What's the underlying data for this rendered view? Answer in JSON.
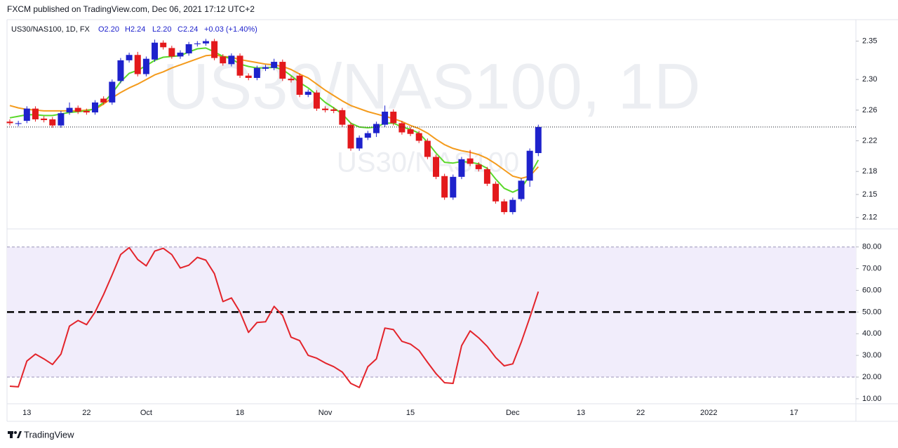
{
  "header": {
    "published": "FXCM published on TradingView.com, Dec 06, 2021 17:12 UTC+2",
    "symbol": "US30/NAS100, 1D, FX",
    "open": "O2.20",
    "high": "H2.24",
    "low": "L2.20",
    "close": "C2.24",
    "change": "+0.03 (+1.40%)"
  },
  "footer": {
    "brand": "TradingView"
  },
  "chart_data": [
    {
      "type": "candlestick",
      "watermark": "US30/NAS100, 1D",
      "watermark_small": "US30/NAS100",
      "up_color": "#1e22cc",
      "down_color": "#e3191c",
      "last_price_line": true,
      "categories": [
        null,
        null,
        "13",
        null,
        null,
        null,
        null,
        null,
        null,
        "22",
        null,
        null,
        null,
        null,
        null,
        null,
        "Oct",
        null,
        null,
        null,
        null,
        null,
        null,
        null,
        null,
        null,
        null,
        "18",
        null,
        null,
        null,
        null,
        null,
        null,
        null,
        null,
        null,
        "Nov",
        null,
        null,
        null,
        null,
        null,
        null,
        null,
        null,
        null,
        "15",
        null,
        null,
        null,
        null,
        null,
        null,
        null,
        null,
        null,
        null,
        null,
        "Dec",
        null,
        null,
        null,
        null,
        null,
        null,
        null,
        "13",
        null,
        null,
        null,
        null,
        null,
        null,
        "22",
        null,
        null,
        null,
        null,
        null,
        null,
        null,
        "2022",
        null,
        null,
        null,
        null,
        null,
        null,
        null,
        null,
        null,
        "17"
      ],
      "open": [
        2.245,
        2.242,
        2.246,
        2.262,
        2.249,
        2.248,
        2.24,
        2.257,
        2.263,
        2.259,
        2.257,
        2.275,
        2.27,
        2.298,
        2.325,
        2.332,
        2.307,
        2.326,
        2.348,
        2.341,
        2.33,
        2.334,
        2.346,
        2.347,
        2.35,
        2.33,
        2.32,
        2.331,
        2.305,
        2.302,
        2.314,
        2.315,
        2.323,
        2.301,
        2.305,
        2.28,
        2.283,
        2.262,
        2.261,
        2.26,
        2.241,
        2.21,
        2.224,
        2.23,
        2.241,
        2.258,
        2.243,
        2.235,
        2.23,
        2.22,
        2.199,
        2.174,
        2.146,
        2.173,
        2.197,
        2.189,
        2.183,
        2.164,
        2.141,
        2.127,
        2.144,
        2.168,
        2.204,
        null,
        null,
        null,
        null,
        null,
        null,
        null,
        null,
        null,
        null,
        null,
        null,
        null,
        null,
        null,
        null,
        null,
        null,
        null,
        null,
        null,
        null,
        null,
        null,
        null,
        null,
        null,
        null,
        null,
        null
      ],
      "high": [
        2.248,
        2.246,
        2.265,
        2.265,
        2.252,
        2.251,
        2.259,
        2.27,
        2.266,
        2.262,
        2.273,
        2.278,
        2.3,
        2.328,
        2.335,
        2.336,
        2.33,
        2.352,
        2.351,
        2.344,
        2.338,
        2.349,
        2.35,
        2.353,
        2.353,
        2.333,
        2.334,
        2.334,
        2.308,
        2.318,
        2.319,
        2.327,
        2.326,
        2.304,
        2.308,
        2.287,
        2.286,
        2.265,
        2.264,
        2.263,
        2.244,
        2.227,
        2.233,
        2.245,
        2.266,
        2.261,
        2.246,
        2.238,
        2.233,
        2.223,
        2.202,
        2.177,
        2.176,
        2.199,
        2.208,
        2.192,
        2.186,
        2.167,
        2.144,
        2.146,
        2.171,
        2.21,
        2.241,
        null,
        null,
        null,
        null,
        null,
        null,
        null,
        null,
        null,
        null,
        null,
        null,
        null,
        null,
        null,
        null,
        null,
        null,
        null,
        null,
        null,
        null,
        null,
        null,
        null,
        null,
        null,
        null,
        null,
        null
      ],
      "low": [
        2.24,
        2.239,
        2.243,
        2.245,
        2.244,
        2.237,
        2.237,
        2.254,
        2.255,
        2.254,
        2.254,
        2.267,
        2.267,
        2.295,
        2.322,
        2.304,
        2.304,
        2.323,
        2.339,
        2.327,
        2.327,
        2.331,
        2.343,
        2.344,
        2.325,
        2.318,
        2.317,
        2.302,
        2.299,
        2.299,
        2.311,
        2.312,
        2.298,
        2.296,
        2.277,
        2.277,
        2.259,
        2.257,
        2.256,
        2.238,
        2.207,
        2.207,
        2.221,
        2.225,
        2.238,
        2.24,
        2.228,
        2.226,
        2.217,
        2.196,
        2.17,
        2.143,
        2.143,
        2.17,
        2.187,
        2.18,
        2.161,
        2.138,
        2.124,
        2.124,
        2.141,
        2.16,
        2.2,
        null,
        null,
        null,
        null,
        null,
        null,
        null,
        null,
        null,
        null,
        null,
        null,
        null,
        null,
        null,
        null,
        null,
        null,
        null,
        null,
        null,
        null,
        null,
        null,
        null,
        null,
        null,
        null,
        null,
        null
      ],
      "close": [
        2.243,
        2.243,
        2.262,
        2.248,
        2.247,
        2.24,
        2.256,
        2.263,
        2.258,
        2.257,
        2.27,
        2.27,
        2.297,
        2.325,
        2.332,
        2.307,
        2.327,
        2.348,
        2.342,
        2.33,
        2.335,
        2.346,
        2.347,
        2.35,
        2.328,
        2.321,
        2.331,
        2.305,
        2.302,
        2.315,
        2.316,
        2.323,
        2.301,
        2.299,
        2.28,
        2.284,
        2.262,
        2.26,
        2.259,
        2.241,
        2.21,
        2.224,
        2.23,
        2.242,
        2.258,
        2.243,
        2.231,
        2.229,
        2.22,
        2.199,
        2.173,
        2.146,
        2.173,
        2.196,
        2.19,
        2.183,
        2.164,
        2.141,
        2.127,
        2.143,
        2.168,
        2.207,
        2.238,
        null,
        null,
        null,
        null,
        null,
        null,
        null,
        null,
        null,
        null,
        null,
        null,
        null,
        null,
        null,
        null,
        null,
        null,
        null,
        null,
        null,
        null,
        null,
        null,
        null,
        null,
        null,
        null,
        null,
        null
      ],
      "series": [
        {
          "color": "#f49b1c",
          "values": [
            2.266,
            2.263,
            2.261,
            2.26,
            2.259,
            2.259,
            2.259,
            2.259,
            2.259,
            2.26,
            2.261,
            2.268,
            2.276,
            2.283,
            2.289,
            2.294,
            2.3,
            2.306,
            2.31,
            2.315,
            2.319,
            2.323,
            2.327,
            2.331,
            2.332,
            2.33,
            2.329,
            2.326,
            2.324,
            2.322,
            2.32,
            2.319,
            2.317,
            2.313,
            2.307,
            2.302,
            2.294,
            2.286,
            2.279,
            2.272,
            2.266,
            2.262,
            2.258,
            2.255,
            2.252,
            2.249,
            2.245,
            2.24,
            2.236,
            2.23,
            2.222,
            2.215,
            2.21,
            2.207,
            2.205,
            2.202,
            2.197,
            2.19,
            2.182,
            2.174,
            2.171,
            2.174,
            2.186,
            null,
            null,
            null,
            null,
            null,
            null,
            null,
            null,
            null,
            null,
            null,
            null,
            null,
            null,
            null,
            null,
            null,
            null,
            null,
            null,
            null,
            null,
            null,
            null,
            null,
            null,
            null,
            null,
            null,
            null
          ]
        },
        {
          "color": "#5ad82a",
          "values": [
            2.25,
            2.252,
            2.254,
            2.254,
            2.253,
            2.253,
            2.255,
            2.257,
            2.258,
            2.259,
            2.262,
            2.27,
            2.282,
            2.297,
            2.308,
            2.312,
            2.318,
            2.325,
            2.329,
            2.33,
            2.331,
            2.336,
            2.34,
            2.341,
            2.336,
            2.33,
            2.327,
            2.32,
            2.317,
            2.315,
            2.315,
            2.316,
            2.313,
            2.305,
            2.296,
            2.289,
            2.28,
            2.27,
            2.263,
            2.255,
            2.243,
            2.238,
            2.237,
            2.238,
            2.243,
            2.243,
            2.238,
            2.235,
            2.23,
            2.218,
            2.204,
            2.192,
            2.191,
            2.193,
            2.192,
            2.19,
            2.184,
            2.17,
            2.158,
            2.153,
            2.158,
            2.175,
            2.195,
            null,
            null,
            null,
            null,
            null,
            null,
            null,
            null,
            null,
            null,
            null,
            null,
            null,
            null,
            null,
            null,
            null,
            null,
            null,
            null,
            null,
            null,
            null,
            null,
            null,
            null,
            null,
            null,
            null,
            null
          ]
        }
      ],
      "ylim": [
        2.106,
        2.378
      ],
      "yticks": [
        2.35,
        {
          "value": 2.3,
          "label": "2.30"
        },
        2.26,
        2.22,
        2.18,
        2.15,
        2.12
      ]
    },
    {
      "type": "line",
      "band": [
        20,
        80
      ],
      "band_color": "#f1edfb",
      "midline": 50,
      "series": [
        {
          "color": "#e3242b",
          "values": [
            15.8,
            15.5,
            27.4,
            30.6,
            28.4,
            25.8,
            30.6,
            43.5,
            46.1,
            44.2,
            50.0,
            58.1,
            67.1,
            76.5,
            79.7,
            74.2,
            71.3,
            78.1,
            79.4,
            76.5,
            70.3,
            71.6,
            75.2,
            73.9,
            67.7,
            54.8,
            56.5,
            50.0,
            40.6,
            45.2,
            45.5,
            52.6,
            48.4,
            38.4,
            36.8,
            30.0,
            28.7,
            26.5,
            24.8,
            22.3,
            17.1,
            15.2,
            24.8,
            28.4,
            42.6,
            41.9,
            36.5,
            35.2,
            32.3,
            26.8,
            21.6,
            17.4,
            17.1,
            34.5,
            41.3,
            38.1,
            34.2,
            29.0,
            25.2,
            26.1,
            36.1,
            47.4,
            59.4,
            null,
            null,
            null,
            null,
            null,
            null,
            null,
            null,
            null,
            null,
            null,
            null,
            null,
            null,
            null,
            null,
            null,
            null,
            null,
            null,
            null,
            null,
            null,
            null,
            null,
            null,
            null,
            null,
            null,
            null
          ]
        }
      ],
      "ylim": [
        7.7,
        88
      ],
      "yticks": [
        {
          "value": 80,
          "label": "80.00"
        },
        {
          "value": 70,
          "label": "70.00"
        },
        {
          "value": 60,
          "label": "60.00"
        },
        {
          "value": 50,
          "label": "50.00"
        },
        {
          "value": 40,
          "label": "40.00"
        },
        {
          "value": 30,
          "label": "30.00"
        },
        {
          "value": 20,
          "label": "20.00"
        },
        {
          "value": 10,
          "label": "10.00"
        }
      ]
    }
  ]
}
